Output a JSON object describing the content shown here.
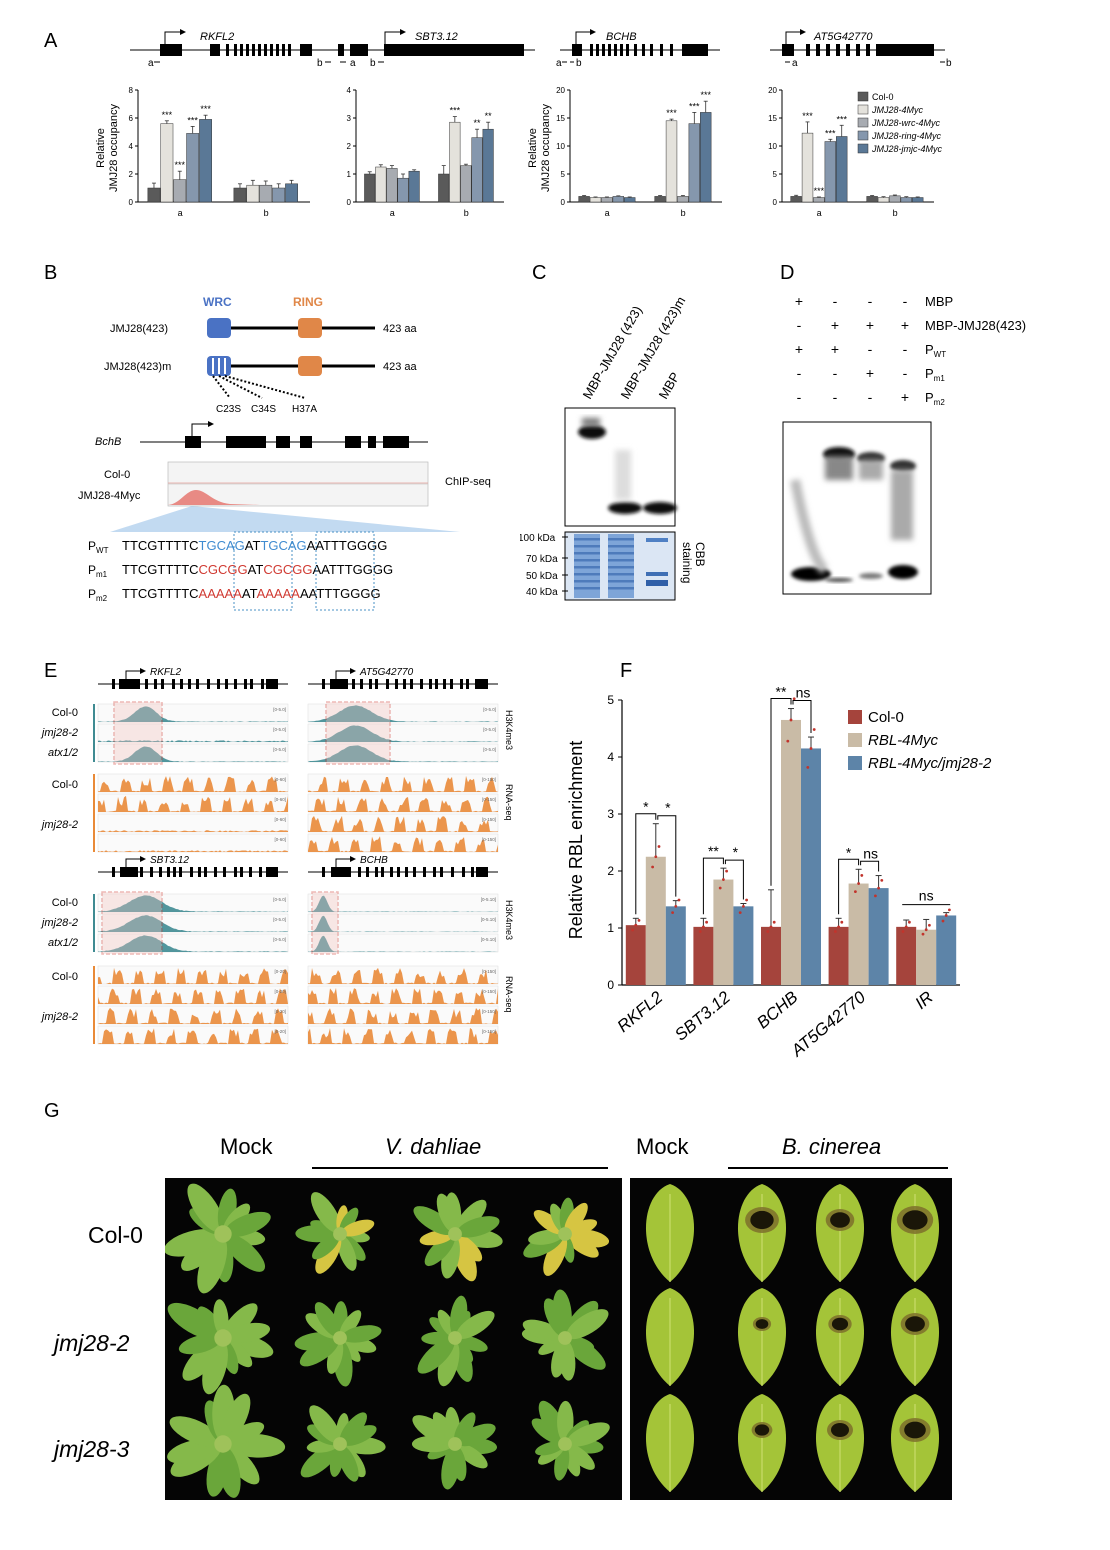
{
  "panels": {
    "A": "A",
    "B": "B",
    "C": "C",
    "D": "D",
    "E": "E",
    "F": "F",
    "G": "G"
  },
  "colors": {
    "col0": "#5a5a5a",
    "jmj28": "#e4e2dc",
    "wrc": "#a7abb1",
    "ring": "#8597ad",
    "jmjc": "#5a7896",
    "f_col0": "#a5443c",
    "f_rbl": "#c9bba6",
    "f_rbljmj": "#5d84a8",
    "teal": "#3f8b92",
    "orange": "#e98a38",
    "wrc_blue": "#4a72c4",
    "ring_orange": "#e08748"
  },
  "panelA": {
    "genes": [
      "RKFL2",
      "SBT3.12",
      "BCHB",
      "AT5G42770"
    ],
    "primer_labels": [
      "a",
      "b"
    ],
    "ylabel": "Relative JMJ28 occupancy",
    "ylabel_l1": "Relative",
    "ylabel_l2": "JMJ28 occupancy",
    "legend": [
      "Col-0",
      "JMJ28-4Myc",
      "JMJ28-wrc-4Myc",
      "JMJ28-ring-4Myc",
      "JMJ28-jmjc-4Myc"
    ],
    "chart_data": [
      {
        "type": "bar",
        "gene": "RKFL2",
        "categories": [
          "a",
          "b"
        ],
        "ylim": [
          0,
          8
        ],
        "yticks": [
          0,
          2,
          4,
          6,
          8
        ],
        "series": [
          {
            "name": "Col-0",
            "values": [
              1.0,
              1.0
            ],
            "errors": [
              0.35,
              0.3
            ]
          },
          {
            "name": "JMJ28-4Myc",
            "values": [
              5.6,
              1.2
            ],
            "errors": [
              0.2,
              0.35
            ]
          },
          {
            "name": "JMJ28-wrc-4Myc",
            "values": [
              1.6,
              1.2
            ],
            "errors": [
              0.6,
              0.3
            ]
          },
          {
            "name": "JMJ28-ring-4Myc",
            "values": [
              4.9,
              1.0
            ],
            "errors": [
              0.5,
              0.3
            ]
          },
          {
            "name": "JMJ28-jmjc-4Myc",
            "values": [
              5.9,
              1.3
            ],
            "errors": [
              0.3,
              0.25
            ]
          }
        ],
        "annotations": [
          [
            "***",
            "***",
            "***",
            "***"
          ],
          []
        ]
      },
      {
        "type": "bar",
        "gene": "SBT3.12",
        "categories": [
          "a",
          "b"
        ],
        "ylim": [
          0,
          4
        ],
        "yticks": [
          0,
          1,
          2,
          3,
          4
        ],
        "series": [
          {
            "name": "Col-0",
            "values": [
              1.0,
              1.0
            ],
            "errors": [
              0.08,
              0.3
            ]
          },
          {
            "name": "JMJ28-4Myc",
            "values": [
              1.25,
              2.85
            ],
            "errors": [
              0.08,
              0.2
            ]
          },
          {
            "name": "JMJ28-wrc-4Myc",
            "values": [
              1.2,
              1.3
            ],
            "errors": [
              0.1,
              0.05
            ]
          },
          {
            "name": "JMJ28-ring-4Myc",
            "values": [
              0.85,
              2.3
            ],
            "errors": [
              0.15,
              0.3
            ]
          },
          {
            "name": "JMJ28-jmjc-4Myc",
            "values": [
              1.1,
              2.6
            ],
            "errors": [
              0.05,
              0.25
            ]
          }
        ],
        "annotations": [
          [],
          [
            "***",
            "",
            "**",
            "**"
          ]
        ]
      },
      {
        "type": "bar",
        "gene": "BCHB",
        "categories": [
          "a",
          "b"
        ],
        "ylim": [
          0,
          20
        ],
        "yticks": [
          0,
          5,
          10,
          15,
          20
        ],
        "series": [
          {
            "name": "Col-0",
            "values": [
              1.0,
              1.0
            ],
            "errors": [
              0.15,
              0.15
            ]
          },
          {
            "name": "JMJ28-4Myc",
            "values": [
              0.8,
              14.5
            ],
            "errors": [
              0.1,
              0.3
            ]
          },
          {
            "name": "JMJ28-wrc-4Myc",
            "values": [
              0.8,
              1.0
            ],
            "errors": [
              0.1,
              0.15
            ]
          },
          {
            "name": "JMJ28-ring-4Myc",
            "values": [
              1.0,
              14.0
            ],
            "errors": [
              0.1,
              2.0
            ]
          },
          {
            "name": "JMJ28-jmjc-4Myc",
            "values": [
              0.8,
              16.0
            ],
            "errors": [
              0.1,
              2.0
            ]
          }
        ],
        "annotations": [
          [],
          [
            "***",
            "",
            "***",
            "***"
          ]
        ]
      },
      {
        "type": "bar",
        "gene": "AT5G42770",
        "categories": [
          "a",
          "b"
        ],
        "ylim": [
          0,
          20
        ],
        "yticks": [
          0,
          5,
          10,
          15,
          20
        ],
        "series": [
          {
            "name": "Col-0",
            "values": [
              1.0,
              1.0
            ],
            "errors": [
              0.2,
              0.15
            ]
          },
          {
            "name": "JMJ28-4Myc",
            "values": [
              12.3,
              0.8
            ],
            "errors": [
              2.0,
              0.15
            ]
          },
          {
            "name": "JMJ28-wrc-4Myc",
            "values": [
              0.8,
              1.1
            ],
            "errors": [
              0.1,
              0.15
            ]
          },
          {
            "name": "JMJ28-ring-4Myc",
            "values": [
              10.8,
              0.8
            ],
            "errors": [
              0.4,
              0.15
            ]
          },
          {
            "name": "JMJ28-jmjc-4Myc",
            "values": [
              11.7,
              0.8
            ],
            "errors": [
              2.0,
              0.1
            ]
          }
        ],
        "annotations": [
          [
            "***",
            "***",
            "***",
            "***"
          ],
          []
        ]
      }
    ]
  },
  "panelB": {
    "domain_wrc": "WRC",
    "domain_ring": "RING",
    "construct1": "JMJ28(423)",
    "construct2": "JMJ28(423)m",
    "aa1": "423 aa",
    "aa2": "423 aa",
    "mut1": "C23S",
    "mut2": "C34S",
    "mut3": "H37A",
    "gene": "BchB",
    "track1": "Col-0",
    "track2": "JMJ28-4Myc",
    "chip_label": "ChIP-seq",
    "probes": [
      {
        "name": "P",
        "sub": "WT",
        "left": "TTCGTTTTC",
        "box1": "TGCAG",
        "mid": "AT",
        "box2": "TGCAG",
        "right": "AATTTGGGG"
      },
      {
        "name": "P",
        "sub": "m1",
        "left": "TTCGTTTTC",
        "box1": "CGCGG",
        "mid": "AT",
        "box2": "CGCGG",
        "right": "AATTTGGGG"
      },
      {
        "name": "P",
        "sub": "m2",
        "left": "TTCGTTTTC",
        "box1": "AAAAA",
        "mid": "AT",
        "box2": "AAAAA",
        "right": "AATTTGGGG"
      }
    ]
  },
  "panelC": {
    "lanes": [
      "MBP-JMJ28 (423)",
      "MBP-JMJ28 (423)m",
      "MBP"
    ],
    "markers": [
      "100 kDa",
      "70 kDa",
      "50 kDa",
      "40 kDa"
    ],
    "stain_l1": "CBB",
    "stain_l2": "staining"
  },
  "panelD": {
    "rows": [
      {
        "label": "MBP",
        "sub": "",
        "signs": [
          "+",
          "-",
          "-",
          "-"
        ]
      },
      {
        "label": "MBP-JMJ28(423)",
        "sub": "",
        "signs": [
          "-",
          "+",
          "+",
          "+"
        ]
      },
      {
        "label": "P",
        "sub": "WT",
        "signs": [
          "+",
          "+",
          "-",
          "-"
        ]
      },
      {
        "label": "P",
        "sub": "m1",
        "signs": [
          "-",
          "-",
          "+",
          "-"
        ]
      },
      {
        "label": "P",
        "sub": "m2",
        "signs": [
          "-",
          "-",
          "-",
          "+"
        ]
      }
    ]
  },
  "panelE": {
    "genes_top": [
      "RKFL2",
      "AT5G42770"
    ],
    "genes_bottom": [
      "SBT3.12",
      "BCHB"
    ],
    "h3_rows": [
      "Col-0",
      "jmj28-2",
      "atx1/2"
    ],
    "rna_rows": [
      "Col-0",
      "jmj28-2"
    ],
    "h3_label": "H3K4me3",
    "rna_label": "RNA-seq",
    "ranges": {
      "h3_a": "[0-5.0]",
      "h3_b": "[0-5.0]",
      "rna_a": "[0-60]",
      "rna_b": "[0-150]",
      "h3_c": "[0-5.0]",
      "h3_d": "[0-5.10]",
      "rna_c": "[0-20]",
      "rna_d": "[0-150]"
    }
  },
  "panelF": {
    "ylabel": "Relative RBL enrichment",
    "legend": [
      "Col-0",
      "RBL-4Myc",
      "RBL-4Myc/jmj28-2"
    ],
    "chart_data": {
      "type": "bar",
      "categories": [
        "RKFL2",
        "SBT3.12",
        "BCHB",
        "AT5G42770",
        "IR"
      ],
      "ylim": [
        0,
        5
      ],
      "yticks": [
        0,
        1,
        2,
        3,
        4,
        5
      ],
      "series": [
        {
          "name": "Col-0",
          "values": [
            1.05,
            1.02,
            1.02,
            1.02,
            1.02
          ],
          "errors": [
            0.12,
            0.15,
            0.65,
            0.15,
            0.12
          ]
        },
        {
          "name": "RBL-4Myc",
          "values": [
            2.25,
            1.85,
            4.65,
            1.78,
            0.97
          ],
          "errors": [
            0.58,
            0.2,
            0.2,
            0.25,
            0.18
          ]
        },
        {
          "name": "RBL-4Myc/jmj28-2",
          "values": [
            1.38,
            1.38,
            4.15,
            1.7,
            1.22
          ],
          "errors": [
            0.1,
            0.05,
            0.2,
            0.22,
            0.05
          ]
        }
      ],
      "significance": [
        {
          "category": "RKFL2",
          "pairs": [
            "*",
            "*"
          ]
        },
        {
          "category": "SBT3.12",
          "pairs": [
            "**",
            "*"
          ]
        },
        {
          "category": "BCHB",
          "pairs": [
            "**",
            "ns"
          ]
        },
        {
          "category": "AT5G42770",
          "pairs": [
            "*",
            "ns"
          ]
        },
        {
          "category": "IR",
          "pairs": [
            "ns"
          ]
        }
      ]
    }
  },
  "panelG": {
    "col_mock1": "Mock",
    "col_vd": "V. dahliae",
    "col_mock2": "Mock",
    "col_bc": "B. cinerea",
    "rows": [
      "Col-0",
      "jmj28-2",
      "jmj28-3"
    ]
  }
}
